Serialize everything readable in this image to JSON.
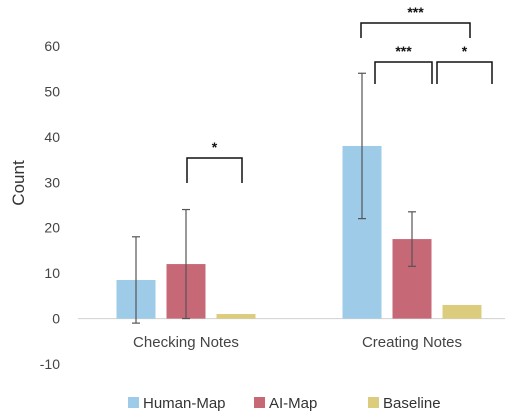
{
  "chart_data": {
    "type": "bar",
    "ylabel": "Count",
    "xlabel": "",
    "ylim": [
      -10,
      60
    ],
    "yticks": [
      -10,
      0,
      10,
      20,
      30,
      40,
      50,
      60
    ],
    "grid": false,
    "legend_position": "bottom",
    "categories": [
      "Checking Notes",
      "Creating Notes"
    ],
    "series": [
      {
        "name": "Human-Map",
        "color": "#9dcbe8",
        "values": [
          8.5,
          38
        ],
        "error": [
          [
            -1,
            18
          ],
          [
            22,
            54
          ]
        ]
      },
      {
        "name": "AI-Map",
        "color": "#c76876",
        "values": [
          12,
          17.5
        ],
        "error": [
          [
            0,
            24
          ],
          [
            11.5,
            23.5
          ]
        ]
      },
      {
        "name": "Baseline",
        "color": "#dccc7e",
        "values": [
          1,
          3
        ],
        "error": [
          null,
          null
        ]
      }
    ],
    "significance": [
      {
        "category": 0,
        "from_series": 1,
        "to_series": 2,
        "label": "*"
      },
      {
        "category": 1,
        "from_series": 0,
        "to_series": 1,
        "label": "***"
      },
      {
        "category": 1,
        "from_series": 1,
        "to_series": 2,
        "label": "*"
      },
      {
        "category": 1,
        "from_series": 0,
        "to_series": 2,
        "label": "***"
      }
    ]
  }
}
